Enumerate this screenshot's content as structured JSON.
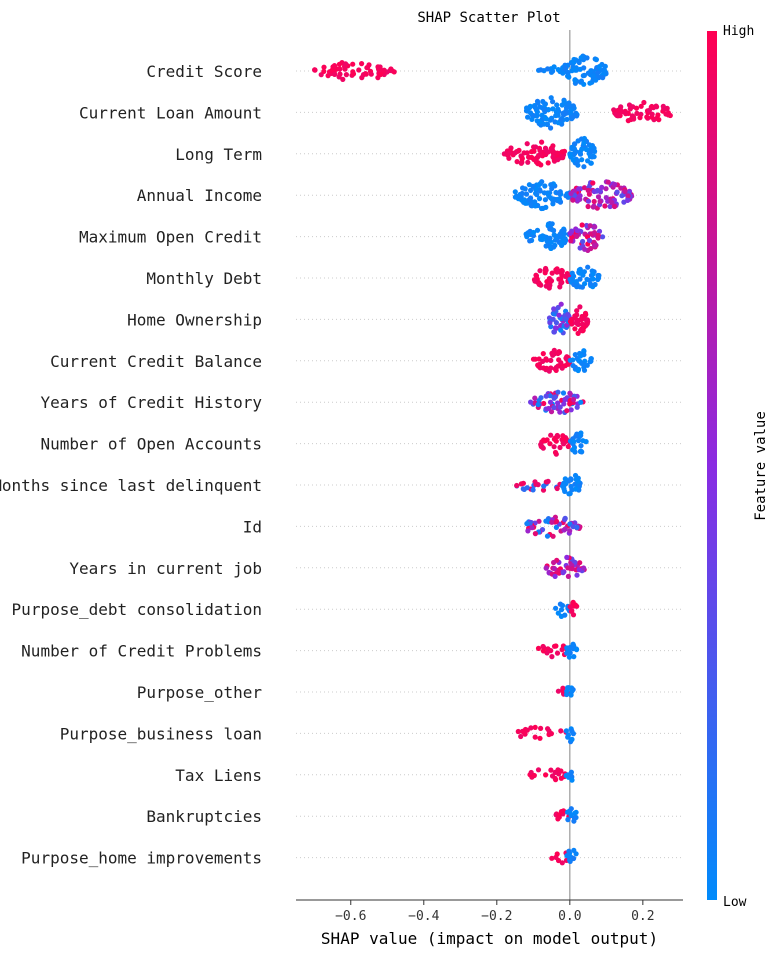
{
  "chart_data": {
    "type": "scatter",
    "subtype": "shap_beeswarm",
    "title": "SHAP Scatter Plot",
    "xlabel": "SHAP value (impact on model output)",
    "xlim": [
      -0.75,
      0.31
    ],
    "xticks": [
      -0.6,
      -0.4,
      -0.2,
      0.0,
      0.2
    ],
    "xtick_labels": [
      "−0.6",
      "−0.4",
      "−0.2",
      "0.0",
      "0.2"
    ],
    "colorbar": {
      "label": "Feature value",
      "high_label": "High",
      "low_label": "Low",
      "high_color": "#ff0052",
      "mid_color": "#8a2be2",
      "low_color": "#008bfb"
    },
    "features": [
      {
        "name": "Credit Score",
        "segments": [
          [
            -0.7,
            -0.48,
            "high",
            0.45
          ],
          [
            -0.12,
            -0.02,
            "low",
            0.15
          ],
          [
            -0.02,
            0.1,
            "low",
            1.0
          ]
        ]
      },
      {
        "name": "Current Loan Amount",
        "segments": [
          [
            -0.12,
            0.02,
            "low",
            1.0
          ],
          [
            0.12,
            0.28,
            "high",
            0.55
          ]
        ]
      },
      {
        "name": "Long Term",
        "segments": [
          [
            -0.18,
            -0.01,
            "high",
            0.7
          ],
          [
            0.0,
            0.07,
            "low",
            1.0
          ]
        ]
      },
      {
        "name": "Annual Income",
        "segments": [
          [
            -0.15,
            0.0,
            "low",
            0.8
          ],
          [
            0.0,
            0.17,
            "mixhigh",
            0.85
          ]
        ]
      },
      {
        "name": "Maximum Open Credit",
        "segments": [
          [
            -0.12,
            0.0,
            "low",
            0.8
          ],
          [
            0.0,
            0.09,
            "mixhigh",
            0.85
          ]
        ]
      },
      {
        "name": "Monthly Debt",
        "segments": [
          [
            -0.1,
            0.0,
            "high",
            0.6
          ],
          [
            0.0,
            0.08,
            "low",
            0.7
          ]
        ]
      },
      {
        "name": "Home Ownership",
        "segments": [
          [
            -0.06,
            0.0,
            "mixlow",
            1.0
          ],
          [
            0.0,
            0.05,
            "high",
            0.9
          ]
        ]
      },
      {
        "name": "Current Credit Balance",
        "segments": [
          [
            -0.1,
            0.0,
            "high",
            0.6
          ],
          [
            0.0,
            0.06,
            "low",
            0.6
          ]
        ]
      },
      {
        "name": "Years of Credit History",
        "segments": [
          [
            -0.11,
            0.04,
            "mix",
            0.6
          ]
        ]
      },
      {
        "name": "Number of Open Accounts",
        "segments": [
          [
            -0.08,
            0.0,
            "high",
            0.6
          ],
          [
            0.0,
            0.05,
            "low",
            0.6
          ]
        ]
      },
      {
        "name": "Months since last delinquent",
        "segments": [
          [
            -0.15,
            -0.02,
            "mixhighlow",
            0.25
          ],
          [
            -0.02,
            0.03,
            "low",
            0.8
          ]
        ]
      },
      {
        "name": "Id",
        "segments": [
          [
            -0.13,
            0.03,
            "mix",
            0.5
          ]
        ]
      },
      {
        "name": "Years in current job",
        "segments": [
          [
            -0.07,
            0.04,
            "mixhigh",
            0.6
          ]
        ]
      },
      {
        "name": "Purpose_debt consolidation",
        "segments": [
          [
            -0.04,
            0.0,
            "low",
            0.3
          ],
          [
            0.0,
            0.02,
            "high",
            0.4
          ]
        ]
      },
      {
        "name": "Number of Credit Problems",
        "segments": [
          [
            -0.09,
            0.0,
            "high",
            0.25
          ],
          [
            -0.01,
            0.02,
            "low",
            0.5
          ]
        ]
      },
      {
        "name": "Purpose_other",
        "segments": [
          [
            -0.04,
            0.0,
            "high",
            0.25
          ],
          [
            -0.01,
            0.01,
            "low",
            0.4
          ]
        ]
      },
      {
        "name": "Purpose_business loan",
        "segments": [
          [
            -0.15,
            -0.01,
            "high",
            0.2
          ],
          [
            -0.01,
            0.01,
            "low",
            0.4
          ]
        ]
      },
      {
        "name": "Tax Liens",
        "segments": [
          [
            -0.11,
            -0.01,
            "high",
            0.25
          ],
          [
            -0.01,
            0.01,
            "low",
            0.4
          ]
        ]
      },
      {
        "name": "Bankruptcies",
        "segments": [
          [
            -0.05,
            0.0,
            "high",
            0.25
          ],
          [
            -0.01,
            0.02,
            "low",
            0.4
          ]
        ]
      },
      {
        "name": "Purpose_home improvements",
        "segments": [
          [
            -0.05,
            0.0,
            "high",
            0.25
          ],
          [
            -0.01,
            0.02,
            "low",
            0.4
          ]
        ]
      }
    ]
  }
}
